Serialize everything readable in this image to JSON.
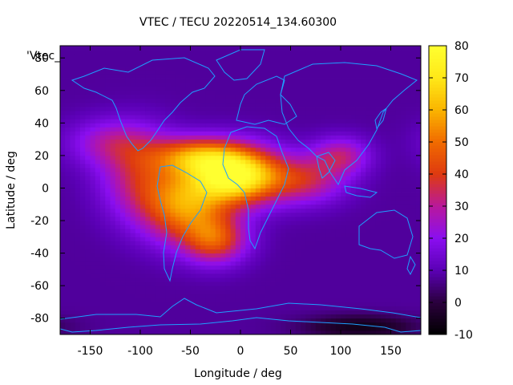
{
  "chart_data": {
    "type": "heatmap",
    "title": "VTEC / TECU 20220514_134.60300",
    "xlabel": "Longitude / deg",
    "ylabel": "Latitude / deg",
    "xlim": [
      -180,
      180
    ],
    "ylim": [
      -90,
      87.5
    ],
    "x_ticks": [
      -150,
      -100,
      -50,
      0,
      50,
      100,
      150
    ],
    "y_ticks": [
      -80,
      -60,
      -40,
      -20,
      0,
      20,
      40,
      60,
      80
    ],
    "colorbar": {
      "range": [
        -10,
        80
      ],
      "ticks": [
        -10,
        0,
        10,
        20,
        30,
        40,
        50,
        60,
        70,
        80
      ],
      "palette": [
        "#000000",
        "#2a003c",
        "#5a00b4",
        "#8a0ef0",
        "#b8189c",
        "#de3a10",
        "#f06a00",
        "#fab400",
        "#ffe818",
        "#ffff30"
      ]
    },
    "legend_entry": "'Vtec_",
    "grid": false,
    "background_value": 8,
    "features": [
      {
        "name": "equatorial anomaly maximum",
        "lon": -5,
        "lat": 8,
        "peak": 78,
        "lon_width": 32,
        "lat_width": 12
      },
      {
        "name": "tropical South America",
        "lon": -55,
        "lat": -12,
        "peak": 50,
        "lon_width": 30,
        "lat_width": 15
      },
      {
        "name": "subtropical Atlantic north",
        "lon": -45,
        "lat": 20,
        "peak": 42,
        "lon_width": 30,
        "lat_width": 8
      },
      {
        "name": "South Atlantic",
        "lon": -25,
        "lat": -32,
        "peak": 40,
        "lon_width": 22,
        "lat_width": 10
      },
      {
        "name": "western Atlantic",
        "lon": -100,
        "lat": 8,
        "peak": 32,
        "lon_width": 28,
        "lat_width": 18
      },
      {
        "name": "Indian Ocean band",
        "lon": 65,
        "lat": 5,
        "peak": 32,
        "lon_width": 28,
        "lat_width": 10
      },
      {
        "name": "southern Asia",
        "lon": 100,
        "lat": 20,
        "peak": 30,
        "lon_width": 20,
        "lat_width": 8
      },
      {
        "name": "North America",
        "lon": -130,
        "lat": 28,
        "peak": 25,
        "lon_width": 30,
        "lat_width": 10
      },
      {
        "name": "polar depletion",
        "lon": 120,
        "lat": -85,
        "peak": -6,
        "lon_width": 40,
        "lat_width": 5
      }
    ]
  }
}
